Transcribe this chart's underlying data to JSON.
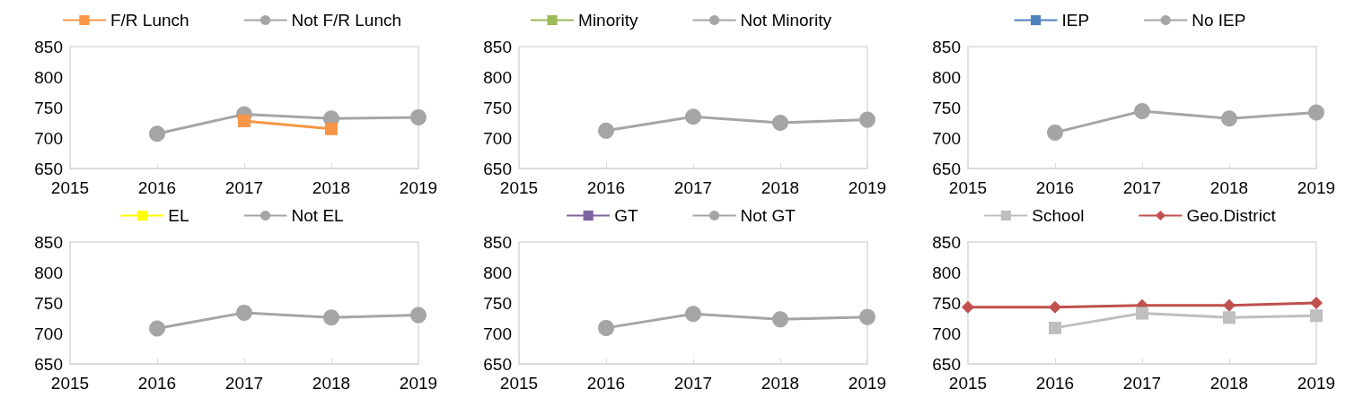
{
  "chart_data": [
    {
      "type": "line",
      "categories": [
        "2015",
        "2016",
        "2017",
        "2018",
        "2019"
      ],
      "ylim": [
        650,
        850
      ],
      "yticks": [
        650,
        700,
        750,
        800,
        850
      ],
      "legend": "top",
      "series": [
        {
          "name": "F/R Lunch",
          "color": "#f79646",
          "marker": "square",
          "values": [
            null,
            null,
            728,
            715,
            null
          ]
        },
        {
          "name": "Not F/R Lunch",
          "color": "#a5a5a5",
          "marker": "circle",
          "values": [
            null,
            707,
            739,
            732,
            734
          ]
        }
      ]
    },
    {
      "type": "line",
      "categories": [
        "2015",
        "2016",
        "2017",
        "2018",
        "2019"
      ],
      "ylim": [
        650,
        850
      ],
      "yticks": [
        650,
        700,
        750,
        800,
        850
      ],
      "legend": "top",
      "series": [
        {
          "name": "Minority",
          "color": "#9bbb59",
          "marker": "square",
          "values": [
            null,
            null,
            null,
            null,
            null
          ]
        },
        {
          "name": "Not Minority",
          "color": "#a5a5a5",
          "marker": "circle",
          "values": [
            null,
            712,
            735,
            725,
            730
          ]
        }
      ]
    },
    {
      "type": "line",
      "categories": [
        "2015",
        "2016",
        "2017",
        "2018",
        "2019"
      ],
      "ylim": [
        650,
        850
      ],
      "yticks": [
        650,
        700,
        750,
        800,
        850
      ],
      "legend": "top",
      "series": [
        {
          "name": "IEP",
          "color": "#4f81bd",
          "marker": "square",
          "values": [
            null,
            null,
            null,
            null,
            null
          ]
        },
        {
          "name": "No IEP",
          "color": "#a5a5a5",
          "marker": "circle",
          "values": [
            null,
            709,
            744,
            732,
            742
          ]
        }
      ]
    },
    {
      "type": "line",
      "categories": [
        "2015",
        "2016",
        "2017",
        "2018",
        "2019"
      ],
      "ylim": [
        650,
        850
      ],
      "yticks": [
        650,
        700,
        750,
        800,
        850
      ],
      "legend": "top",
      "series": [
        {
          "name": "EL",
          "color": "#ffff00",
          "marker": "square",
          "values": [
            null,
            null,
            null,
            null,
            null
          ]
        },
        {
          "name": "Not EL",
          "color": "#a5a5a5",
          "marker": "circle",
          "values": [
            null,
            708,
            734,
            726,
            730
          ]
        }
      ]
    },
    {
      "type": "line",
      "categories": [
        "2015",
        "2016",
        "2017",
        "2018",
        "2019"
      ],
      "ylim": [
        650,
        850
      ],
      "yticks": [
        650,
        700,
        750,
        800,
        850
      ],
      "legend": "top",
      "series": [
        {
          "name": "GT",
          "color": "#8064a2",
          "marker": "square",
          "values": [
            null,
            null,
            null,
            null,
            null
          ]
        },
        {
          "name": "Not GT",
          "color": "#a5a5a5",
          "marker": "circle",
          "values": [
            null,
            709,
            732,
            723,
            727
          ]
        }
      ]
    },
    {
      "type": "line",
      "categories": [
        "2015",
        "2016",
        "2017",
        "2018",
        "2019"
      ],
      "ylim": [
        650,
        850
      ],
      "yticks": [
        650,
        700,
        750,
        800,
        850
      ],
      "legend": "top",
      "series": [
        {
          "name": "School",
          "color": "#bfbfbf",
          "marker": "square",
          "values": [
            null,
            709,
            733,
            726,
            729
          ]
        },
        {
          "name": "Geo.District",
          "color": "#c0504d",
          "marker": "diamond",
          "values": [
            743,
            743,
            746,
            746,
            750
          ]
        }
      ]
    }
  ]
}
